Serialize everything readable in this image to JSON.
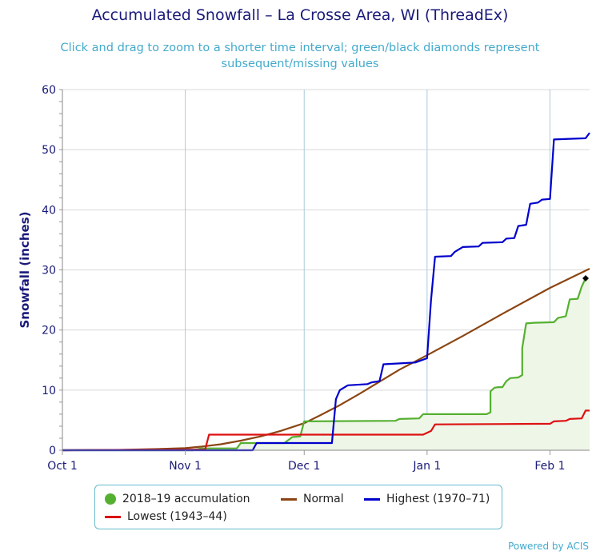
{
  "header": {
    "title": "Accumulated Snowfall – La Crosse Area, WI (ThreadEx)",
    "subtitle_line1": "Click and drag to zoom to a shorter time interval; green/black diamonds represent",
    "subtitle_line2": "subsequent/missing values"
  },
  "legend": {
    "accumulation": "2018–19 accumulation",
    "normal": "Normal",
    "highest": "Highest (1970–71)",
    "lowest": "Lowest (1943–44)"
  },
  "credit": "Powered by ACIS",
  "colors": {
    "accumulation": "#55b030",
    "accumulation_fill": "#eef6e8",
    "normal": "#8b4513",
    "highest": "#0000cc",
    "lowest": "#dd1111",
    "axis_text": "#1a1a7a",
    "grid": "#aaccdd"
  },
  "chart_data": {
    "type": "line",
    "title": "Accumulated Snowfall – La Crosse Area, WI (ThreadEx)",
    "xlabel": "",
    "ylabel": "Snowfall (inches)",
    "xlim": [
      "2018-10-01",
      "2019-02-11"
    ],
    "ylim": [
      0,
      60
    ],
    "y_ticks": [
      0,
      10,
      20,
      30,
      40,
      50,
      60
    ],
    "x_ticks": [
      {
        "date": "2018-10-01",
        "label": "Oct 1"
      },
      {
        "date": "2018-11-01",
        "label": "Nov 1"
      },
      {
        "date": "2018-12-01",
        "label": "Dec 1"
      },
      {
        "date": "2019-01-01",
        "label": "Jan 1"
      },
      {
        "date": "2019-02-01",
        "label": "Feb 1"
      }
    ],
    "grid": true,
    "legend_position": "bottom",
    "series": [
      {
        "name": "2018–19 accumulation",
        "key": "accumulation",
        "points": [
          [
            "2018-10-01",
            0
          ],
          [
            "2018-11-03",
            0
          ],
          [
            "2018-11-05",
            0.3
          ],
          [
            "2018-11-14",
            0.3
          ],
          [
            "2018-11-15",
            1.2
          ],
          [
            "2018-11-26",
            1.2
          ],
          [
            "2018-11-28",
            2.2
          ],
          [
            "2018-11-30",
            2.3
          ],
          [
            "2018-12-01",
            4.8
          ],
          [
            "2018-12-24",
            4.9
          ],
          [
            "2018-12-25",
            5.2
          ],
          [
            "2018-12-30",
            5.3
          ],
          [
            "2018-12-31",
            6.0
          ],
          [
            "2019-01-16",
            6.0
          ],
          [
            "2019-01-17",
            6.3
          ],
          [
            "2019-01-17",
            9.8
          ],
          [
            "2019-01-18",
            10.4
          ],
          [
            "2019-01-19",
            10.5
          ],
          [
            "2019-01-20",
            10.5
          ],
          [
            "2019-01-21",
            11.5
          ],
          [
            "2019-01-22",
            12.0
          ],
          [
            "2019-01-24",
            12.1
          ],
          [
            "2019-01-25",
            12.5
          ],
          [
            "2019-01-25",
            17.0
          ],
          [
            "2019-01-26",
            21.1
          ],
          [
            "2019-01-28",
            21.2
          ],
          [
            "2019-02-02",
            21.3
          ],
          [
            "2019-02-03",
            22.0
          ],
          [
            "2019-02-05",
            22.3
          ],
          [
            "2019-02-06",
            25.1
          ],
          [
            "2019-02-08",
            25.2
          ],
          [
            "2019-02-09",
            27.2
          ],
          [
            "2019-02-10",
            28.6
          ]
        ]
      },
      {
        "name": "Normal",
        "key": "normal",
        "points": [
          [
            "2018-10-01",
            0
          ],
          [
            "2018-10-15",
            0.05
          ],
          [
            "2018-10-25",
            0.2
          ],
          [
            "2018-11-01",
            0.35
          ],
          [
            "2018-11-05",
            0.6
          ],
          [
            "2018-11-10",
            1.0
          ],
          [
            "2018-11-15",
            1.6
          ],
          [
            "2018-11-20",
            2.3
          ],
          [
            "2018-11-25",
            3.2
          ],
          [
            "2018-12-01",
            4.5
          ],
          [
            "2018-12-05",
            5.8
          ],
          [
            "2018-12-10",
            7.5
          ],
          [
            "2018-12-15",
            9.4
          ],
          [
            "2018-12-20",
            11.4
          ],
          [
            "2018-12-25",
            13.4
          ],
          [
            "2019-01-01",
            15.8
          ],
          [
            "2019-01-10",
            19.0
          ],
          [
            "2019-01-20",
            22.7
          ],
          [
            "2019-02-01",
            27.0
          ],
          [
            "2019-02-11",
            30.2
          ]
        ]
      },
      {
        "name": "Highest (1970–71)",
        "key": "highest",
        "points": [
          [
            "2018-10-01",
            0
          ],
          [
            "2018-11-18",
            0
          ],
          [
            "2018-11-19",
            1.2
          ],
          [
            "2018-12-08",
            1.2
          ],
          [
            "2018-12-09",
            8.5
          ],
          [
            "2018-12-10",
            10.0
          ],
          [
            "2018-12-12",
            10.8
          ],
          [
            "2018-12-17",
            11.0
          ],
          [
            "2018-12-18",
            11.3
          ],
          [
            "2018-12-20",
            11.5
          ],
          [
            "2018-12-21",
            14.3
          ],
          [
            "2018-12-29",
            14.6
          ],
          [
            "2019-01-01",
            15.3
          ],
          [
            "2019-01-02",
            25.0
          ],
          [
            "2019-01-03",
            32.2
          ],
          [
            "2019-01-07",
            32.3
          ],
          [
            "2019-01-08",
            33.0
          ],
          [
            "2019-01-10",
            33.8
          ],
          [
            "2019-01-14",
            33.9
          ],
          [
            "2019-01-15",
            34.5
          ],
          [
            "2019-01-20",
            34.6
          ],
          [
            "2019-01-21",
            35.2
          ],
          [
            "2019-01-23",
            35.3
          ],
          [
            "2019-01-24",
            37.3
          ],
          [
            "2019-01-26",
            37.5
          ],
          [
            "2019-01-27",
            41.0
          ],
          [
            "2019-01-29",
            41.2
          ],
          [
            "2019-01-30",
            41.7
          ],
          [
            "2019-02-01",
            41.8
          ],
          [
            "2019-02-02",
            51.7
          ],
          [
            "2019-02-10",
            51.9
          ],
          [
            "2019-02-11",
            52.8
          ]
        ]
      },
      {
        "name": "Lowest (1943–44)",
        "key": "lowest",
        "points": [
          [
            "2018-10-01",
            0
          ],
          [
            "2018-11-06",
            0.1
          ],
          [
            "2018-11-07",
            2.6
          ],
          [
            "2018-12-31",
            2.6
          ],
          [
            "2019-01-02",
            3.2
          ],
          [
            "2019-01-03",
            4.3
          ],
          [
            "2019-02-01",
            4.4
          ],
          [
            "2019-02-02",
            4.8
          ],
          [
            "2019-02-05",
            4.9
          ],
          [
            "2019-02-06",
            5.2
          ],
          [
            "2019-02-09",
            5.3
          ],
          [
            "2019-02-10",
            6.6
          ],
          [
            "2019-02-11",
            6.6
          ]
        ]
      }
    ],
    "markers": [
      {
        "date": "2019-02-10",
        "value": 28.6,
        "shape": "diamond",
        "color": "#000000"
      }
    ]
  }
}
